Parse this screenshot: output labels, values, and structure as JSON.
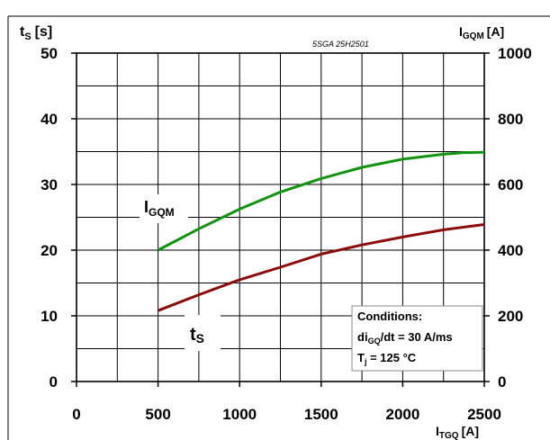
{
  "chart_data": {
    "type": "line",
    "x_axis": {
      "label": "I",
      "label_sub": "TGQ",
      "label_unit": "[A]",
      "min": 0,
      "max": 2500,
      "ticks": [
        0,
        500,
        1000,
        1500,
        2000,
        2500
      ],
      "minor_step": 250
    },
    "y_left": {
      "label": "t",
      "label_sub": "S",
      "label_unit": "[s]",
      "min": 0,
      "max": 50,
      "ticks": [
        0,
        10,
        20,
        30,
        40,
        50
      ],
      "minor_step": 5
    },
    "y_right": {
      "label": "I",
      "label_sub": "GQM",
      "label_unit": "[A]",
      "min": 0,
      "max": 1000,
      "ticks": [
        0,
        200,
        400,
        600,
        800,
        1000
      ]
    },
    "series": [
      {
        "name": "I",
        "name_sub": "GQM",
        "axis": "right",
        "color": "#129312",
        "x": [
          500,
          750,
          1000,
          1250,
          1500,
          1750,
          2000,
          2250,
          2375,
          2500
        ],
        "y": [
          400,
          465,
          525,
          577,
          618,
          652,
          677,
          692,
          697,
          698
        ]
      },
      {
        "name": "t",
        "name_sub": "S",
        "axis": "left",
        "color": "#8c0b0b",
        "x": [
          500,
          750,
          1000,
          1250,
          1500,
          1750,
          2000,
          2250,
          2500
        ],
        "y": [
          10.8,
          13.2,
          15.5,
          17.4,
          19.4,
          20.8,
          22.0,
          23.1,
          23.9
        ]
      }
    ],
    "annotation": "5SGA 25H2501",
    "conditions": {
      "title": "Conditions:",
      "line1_a": "di",
      "line1_sub": "GQ",
      "line1_b": "/dt = 30 A/ms",
      "line2_a": "T",
      "line2_sub": "j",
      "line2_b": " = 125 °C"
    },
    "grid": true
  }
}
